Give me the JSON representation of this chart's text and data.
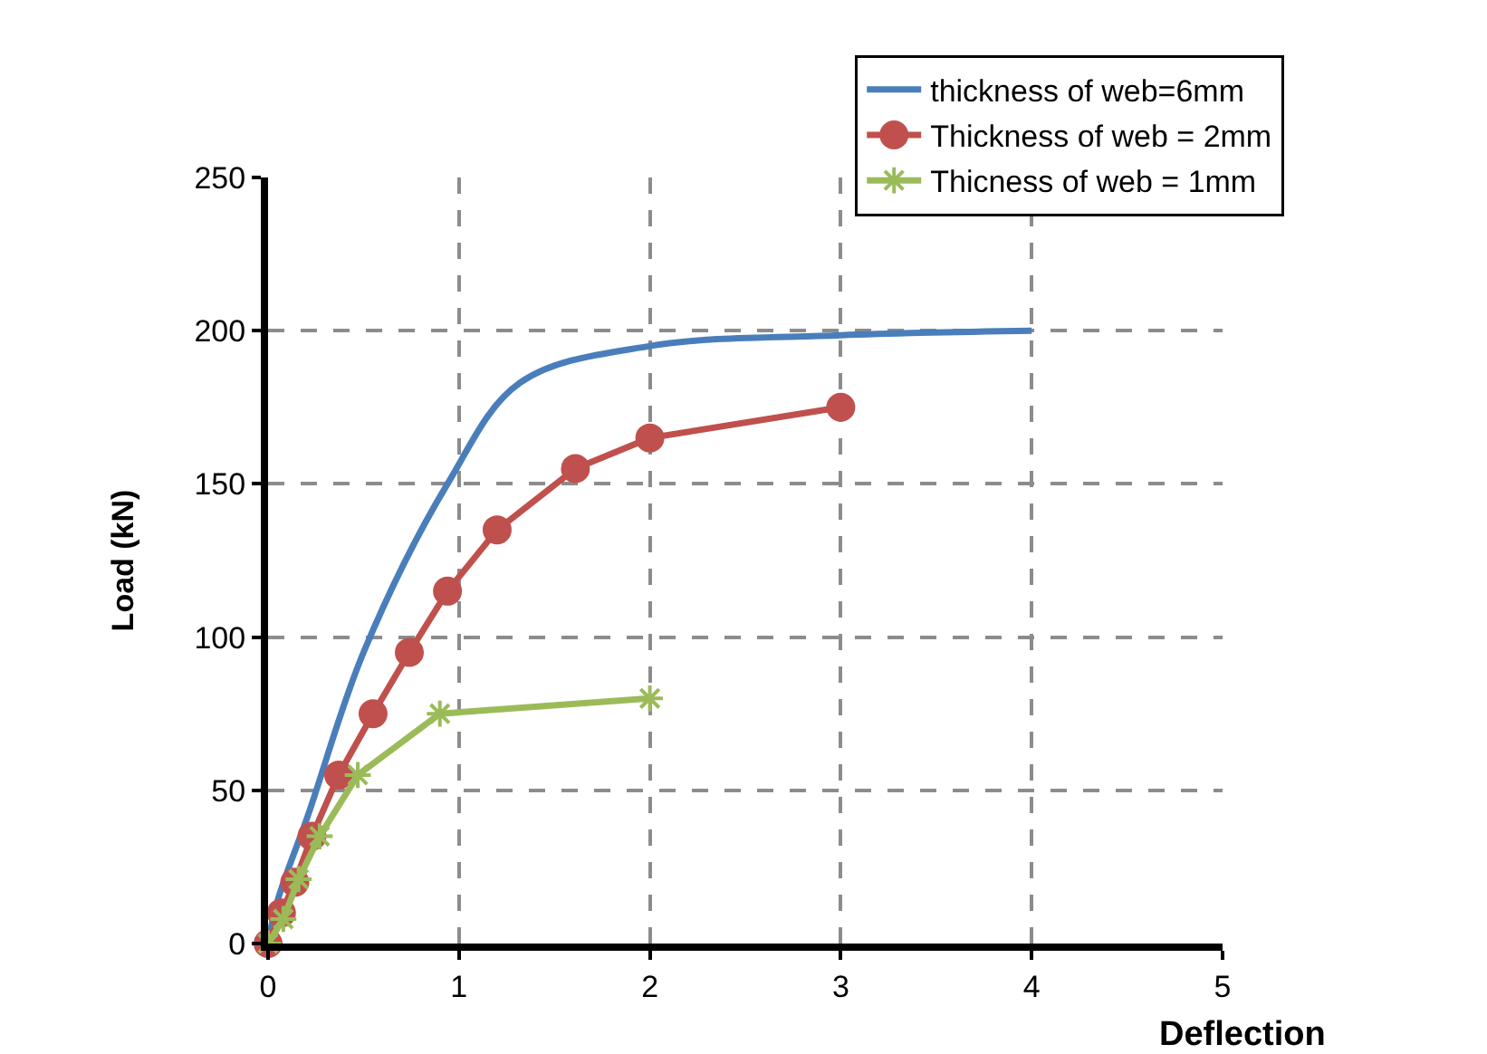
{
  "chart_data": {
    "type": "line",
    "xlabel": "Deflection",
    "ylabel": "Load (kN)",
    "xlim": [
      0,
      5
    ],
    "xticks": [
      0,
      1,
      2,
      3,
      4,
      5
    ],
    "ylim": [
      0,
      250
    ],
    "yticks": [
      0,
      50,
      100,
      150,
      200,
      250
    ],
    "grid": true,
    "legend": "top right",
    "line_style": "solid",
    "series": [
      {
        "name": "thickness of web=6mm",
        "color": "#4a7ebb",
        "marker": "none",
        "x": [
          0,
          0.05,
          0.21,
          0.5,
          0.94,
          1.32,
          2,
          3,
          4
        ],
        "values": [
          0,
          14,
          42,
          95,
          150,
          183,
          195,
          198.5,
          200
        ]
      },
      {
        "name": "Thickness of web = 2mm",
        "color": "#c0504d",
        "marker": "circle",
        "x": [
          0,
          0.07,
          0.14,
          0.23,
          0.37,
          0.55,
          0.74,
          0.94,
          1.2,
          1.61,
          2,
          3
        ],
        "values": [
          0,
          10,
          20,
          35,
          55,
          75,
          95,
          115,
          135,
          155,
          165,
          175
        ]
      },
      {
        "name": "Thicness of web = 1mm",
        "color": "#9bbb59",
        "marker": "cross",
        "x": [
          0,
          0.08,
          0.16,
          0.27,
          0.47,
          0.9,
          2
        ],
        "values": [
          0,
          8,
          21,
          35,
          55,
          75,
          80
        ]
      }
    ]
  }
}
